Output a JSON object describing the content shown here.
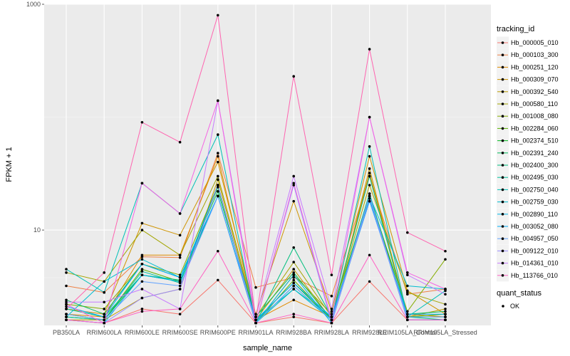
{
  "chart_data": {
    "type": "line",
    "xlabel": "sample_name",
    "ylabel": "FPKM + 1",
    "y_scale": "log10",
    "ylim": [
      1.43,
      1000
    ],
    "yticks": [
      10,
      1000
    ],
    "grid": true,
    "categories": [
      "PB350LA",
      "RRIM600LA",
      "RRIM600LE",
      "RRIM600SE",
      "RRIM600PE",
      "RRIM901LA",
      "RRIM928BA",
      "RRIM928LA",
      "RRIM928LE",
      "RRIM105LA_Control",
      "RRIM105LA_Stressed"
    ],
    "legend": {
      "title": "tracking_id",
      "position": "right",
      "status_title": "quant_status",
      "status_label": "OK"
    },
    "series": [
      {
        "name": "Hb_000005_010",
        "color": "#F8766D",
        "values": [
          1.6,
          1.5,
          2.0,
          1.8,
          3.6,
          1.5,
          1.7,
          1.5,
          3.5,
          1.6,
          1.6
        ]
      },
      {
        "name": "Hb_000103_300",
        "color": "#EE8044",
        "values": [
          3.2,
          2.8,
          5.8,
          5.7,
          48,
          3.1,
          3.8,
          2.6,
          30,
          2.7,
          3.0
        ]
      },
      {
        "name": "Hb_000251_120",
        "color": "#E08B00",
        "values": [
          1.8,
          1.7,
          6.0,
          6.0,
          45,
          1.6,
          2.4,
          1.7,
          32,
          1.8,
          1.7
        ]
      },
      {
        "name": "Hb_000309_070",
        "color": "#CF9400",
        "values": [
          2.0,
          1.8,
          11.5,
          9.0,
          40,
          1.8,
          18,
          1.9,
          45,
          2.9,
          1.8
        ]
      },
      {
        "name": "Hb_000392_540",
        "color": "#BB9D00",
        "values": [
          1.6,
          1.6,
          2.5,
          3.0,
          28,
          1.6,
          4.5,
          1.6,
          35,
          1.7,
          2.0
        ]
      },
      {
        "name": "Hb_000580_110",
        "color": "#A3A500",
        "values": [
          4.2,
          3.5,
          10,
          6.0,
          30,
          1.7,
          5.2,
          1.7,
          25,
          2.8,
          2.2
        ]
      },
      {
        "name": "Hb_001008_080",
        "color": "#85AD00",
        "values": [
          2.2,
          2.0,
          5.0,
          4.0,
          25,
          1.5,
          4.0,
          1.8,
          20,
          1.9,
          5.5
        ]
      },
      {
        "name": "Hb_002284_060",
        "color": "#5BB300",
        "values": [
          1.8,
          1.6,
          4.5,
          3.5,
          25,
          1.5,
          3.6,
          1.6,
          20,
          1.7,
          1.8
        ]
      },
      {
        "name": "Hb_002374_510",
        "color": "#00B81F",
        "values": [
          1.7,
          1.6,
          4.0,
          3.5,
          24,
          1.6,
          3.4,
          1.6,
          21,
          1.7,
          1.7
        ]
      },
      {
        "name": "Hb_002391_240",
        "color": "#00BC59",
        "values": [
          2.4,
          1.8,
          5.0,
          3.8,
          22,
          1.7,
          4.2,
          1.6,
          18,
          1.8,
          1.9
        ]
      },
      {
        "name": "Hb_002400_300",
        "color": "#00BF7D",
        "values": [
          2.0,
          1.7,
          4.0,
          3.6,
          20,
          1.5,
          7.0,
          1.7,
          30,
          1.7,
          1.6
        ]
      },
      {
        "name": "Hb_002495_030",
        "color": "#00C19C",
        "values": [
          1.7,
          1.6,
          4.3,
          3.4,
          20,
          1.5,
          3.2,
          1.6,
          21,
          1.6,
          1.6
        ]
      },
      {
        "name": "Hb_002750_040",
        "color": "#00C0B7",
        "values": [
          4.5,
          2.8,
          26,
          14,
          70,
          1.5,
          3.0,
          1.7,
          55,
          1.7,
          2.9
        ]
      },
      {
        "name": "Hb_002759_030",
        "color": "#00BDD0",
        "values": [
          1.7,
          3.5,
          5.5,
          3.8,
          20,
          1.6,
          3.0,
          1.6,
          20,
          3.2,
          3.0
        ]
      },
      {
        "name": "Hb_002890_110",
        "color": "#00B6E7",
        "values": [
          1.6,
          1.5,
          4.0,
          3.5,
          25,
          1.5,
          4.0,
          1.5,
          19,
          1.6,
          1.6
        ]
      },
      {
        "name": "Hb_003052_080",
        "color": "#00ADFA",
        "values": [
          2.1,
          1.7,
          5.0,
          3.8,
          20,
          1.6,
          3.4,
          1.7,
          18,
          1.8,
          1.8
        ]
      },
      {
        "name": "Hb_004957_050",
        "color": "#61A2FF",
        "values": [
          1.8,
          1.6,
          3.5,
          3.2,
          20,
          1.5,
          3.2,
          1.6,
          18,
          1.7,
          1.7
        ]
      },
      {
        "name": "Hb_009122_010",
        "color": "#9C8DFF",
        "values": [
          1.6,
          1.5,
          2.5,
          3.0,
          25,
          1.5,
          25,
          1.5,
          20,
          1.6,
          1.6
        ]
      },
      {
        "name": "Hb_014361_010",
        "color": "#C77CFF",
        "values": [
          2.3,
          2.3,
          3.0,
          2.0,
          140,
          1.7,
          30,
          2.0,
          100,
          4.0,
          2.7
        ]
      },
      {
        "name": "Hb_113766_010",
        "color": "#FF61C3",
        "values": [
          1.6,
          1.5,
          1.9,
          2.0,
          6.5,
          1.5,
          1.8,
          1.5,
          6.0,
          1.6,
          1.6
        ]
      },
      {
        "name": "",
        "color": "#F564E3",
        "values": [
          2.2,
          1.5,
          26,
          14,
          140,
          1.5,
          26,
          1.6,
          100,
          4.2,
          3.0
        ]
      },
      {
        "name": "",
        "color": "#FF64B0",
        "values": [
          2.0,
          4.2,
          90,
          60,
          800,
          1.6,
          230,
          4.0,
          400,
          9.5,
          6.5
        ]
      }
    ]
  }
}
